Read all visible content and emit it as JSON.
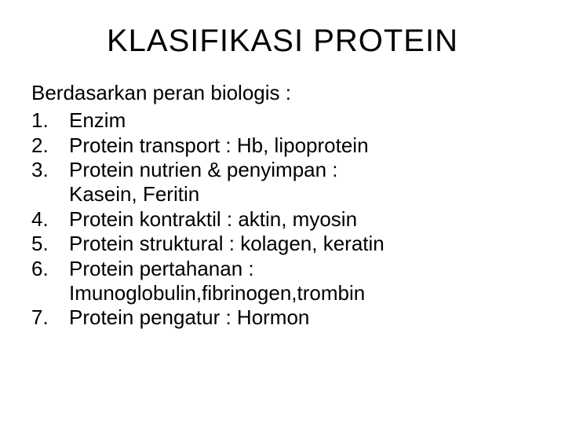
{
  "title": "KLASIFIKASI  PROTEIN",
  "intro": "Berdasarkan peran biologis :",
  "items": [
    {
      "num": "1.",
      "text": "Enzim"
    },
    {
      "num": "2.",
      "text": "Protein transport : Hb, lipoprotein"
    },
    {
      "num": "3.",
      "text": "Protein nutrien & penyimpan :\nKasein, Feritin"
    },
    {
      "num": "4.",
      "text": "Protein kontraktil : aktin, myosin"
    },
    {
      "num": "5.",
      "text": "Protein struktural : kolagen, keratin"
    },
    {
      "num": "6.",
      "text": "Protein pertahanan :\nImunoglobulin,fibrinogen,trombin"
    },
    {
      "num": "7.",
      "text": "Protein pengatur : Hormon"
    }
  ],
  "colors": {
    "background": "#ffffff",
    "text": "#000000"
  },
  "typography": {
    "title_fontsize": 40,
    "body_fontsize": 26,
    "font_family": "Arial"
  }
}
